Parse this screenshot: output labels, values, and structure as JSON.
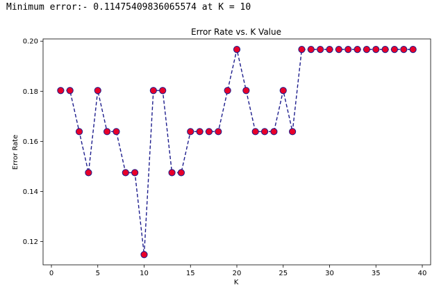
{
  "console": {
    "output_text": "Minimum error:- 0.11475409836065574 at K = 10"
  },
  "chart_data": {
    "type": "line",
    "title": "Error Rate vs. K Value",
    "xlabel": "K",
    "ylabel": "Error Rate",
    "xlim": [
      -0.9,
      40.9
    ],
    "ylim": [
      0.1107,
      0.2009
    ],
    "xticks": [
      0,
      5,
      10,
      15,
      20,
      25,
      30,
      35,
      40
    ],
    "yticks": [
      0.12,
      0.14,
      0.16,
      0.18,
      0.2
    ],
    "xtick_labels": [
      "0",
      "5",
      "10",
      "15",
      "20",
      "25",
      "30",
      "35",
      "40"
    ],
    "ytick_labels": [
      "0.12",
      "0.14",
      "0.16",
      "0.18",
      "0.20"
    ],
    "grid": false,
    "line_style": "dashed",
    "line_color": "#1c1c8c",
    "marker": "circle",
    "marker_face_color": "#e8002a",
    "marker_edge_color": "#1c1c8c",
    "series": [
      {
        "x": [
          1,
          2,
          3,
          4,
          5,
          6,
          7,
          8,
          9,
          10,
          11,
          12,
          13,
          14,
          15,
          16,
          17,
          18,
          19,
          20,
          21,
          22,
          23,
          24,
          25,
          26,
          27,
          28,
          29,
          30,
          31,
          32,
          33,
          34,
          35,
          36,
          37,
          38,
          39
        ],
        "values": [
          0.1803,
          0.1803,
          0.1639,
          0.1475,
          0.1803,
          0.1639,
          0.1639,
          0.1475,
          0.1475,
          0.1148,
          0.1803,
          0.1803,
          0.1475,
          0.1475,
          0.1639,
          0.1639,
          0.1639,
          0.1639,
          0.1803,
          0.1967,
          0.1803,
          0.1639,
          0.1639,
          0.1639,
          0.1803,
          0.1639,
          0.1967,
          0.1967,
          0.1967,
          0.1967,
          0.1967,
          0.1967,
          0.1967,
          0.1967,
          0.1967,
          0.1967,
          0.1967,
          0.1967,
          0.1967
        ]
      }
    ]
  }
}
